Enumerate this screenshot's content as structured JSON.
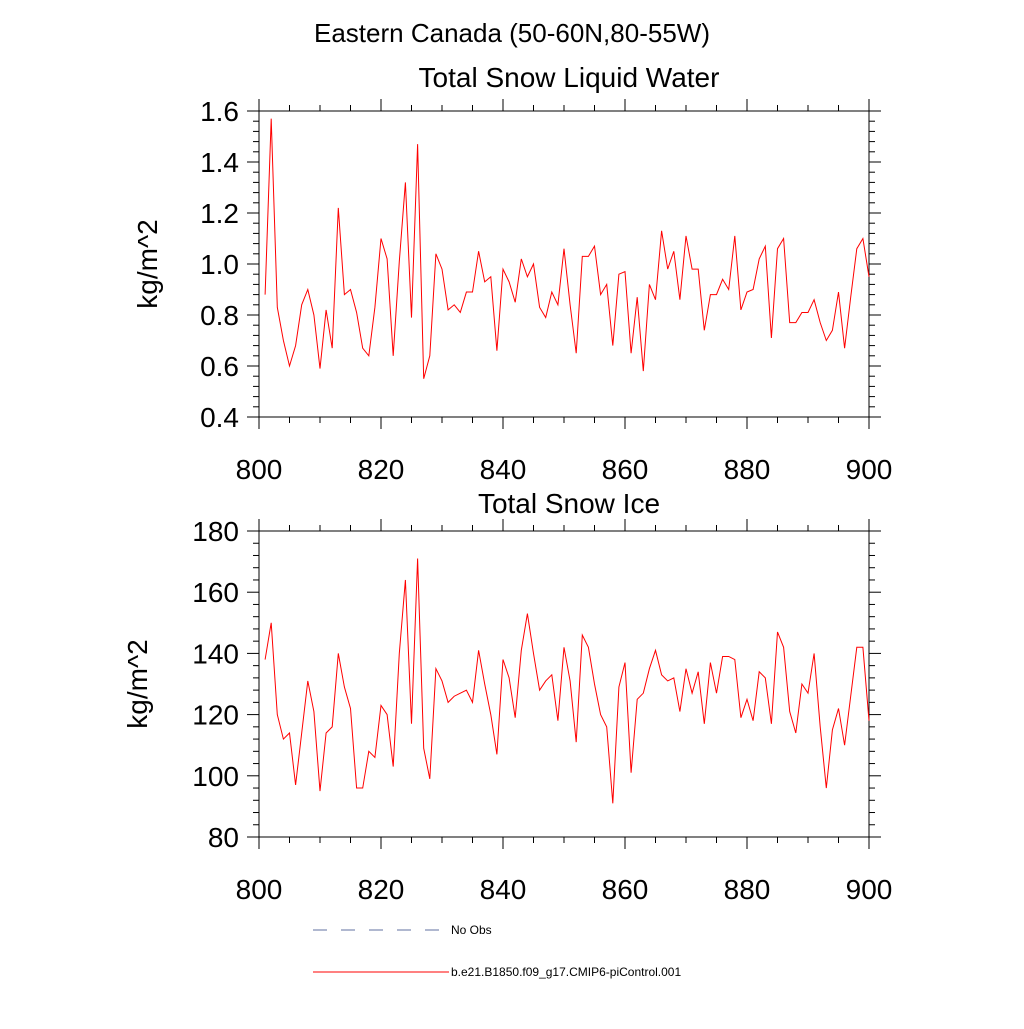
{
  "figure": {
    "title": "Eastern Canada (50-60N,80-55W)"
  },
  "chart_data": [
    {
      "type": "line",
      "title": "Total Snow Liquid Water",
      "xlabel": "",
      "ylabel": "kg/m^2",
      "xlim": [
        800,
        900
      ],
      "ylim": [
        0.4,
        1.6
      ],
      "x_ticks": [
        800,
        820,
        840,
        860,
        880,
        900
      ],
      "x_tick_labels": [
        "800",
        "820",
        "840",
        "860",
        "880",
        "900"
      ],
      "y_ticks": [
        0.4,
        0.6,
        0.8,
        1.0,
        1.2,
        1.4,
        1.6
      ],
      "y_tick_labels": [
        "0.4",
        "0.6",
        "0.8",
        "1.0",
        "1.2",
        "1.4",
        "1.6"
      ],
      "grid": false,
      "series": [
        {
          "name": "b.e21.B1850.f09_g17.CMIP6-piControl.001",
          "color": "#ff0000",
          "x_start": 801,
          "x_step": 1,
          "values": [
            0.88,
            1.57,
            0.83,
            0.7,
            0.6,
            0.68,
            0.84,
            0.9,
            0.8,
            0.59,
            0.82,
            0.67,
            1.22,
            0.88,
            0.9,
            0.81,
            0.67,
            0.64,
            0.83,
            1.1,
            1.02,
            0.64,
            1.01,
            1.32,
            0.79,
            1.47,
            0.55,
            0.64,
            1.04,
            0.98,
            0.82,
            0.84,
            0.81,
            0.89,
            0.89,
            1.05,
            0.93,
            0.95,
            0.66,
            0.98,
            0.93,
            0.85,
            1.02,
            0.95,
            1.0,
            0.83,
            0.79,
            0.89,
            0.84,
            1.06,
            0.84,
            0.65,
            1.03,
            1.03,
            1.07,
            0.88,
            0.92,
            0.68,
            0.96,
            0.97,
            0.65,
            0.87,
            0.58,
            0.92,
            0.86,
            1.13,
            0.98,
            1.05,
            0.86,
            1.11,
            0.98,
            0.98,
            0.74,
            0.88,
            0.88,
            0.94,
            0.9,
            1.11,
            0.82,
            0.89,
            0.9,
            1.02,
            1.07,
            0.71,
            1.06,
            1.1,
            0.77,
            0.77,
            0.81,
            0.81,
            0.86,
            0.77,
            0.7,
            0.74,
            0.89,
            0.67,
            0.87,
            1.06,
            1.1,
            0.95
          ]
        }
      ]
    },
    {
      "type": "line",
      "title": "Total Snow Ice",
      "xlabel": "",
      "ylabel": "kg/m^2",
      "xlim": [
        800,
        900
      ],
      "ylim": [
        80,
        180
      ],
      "x_ticks": [
        800,
        820,
        840,
        860,
        880,
        900
      ],
      "x_tick_labels": [
        "800",
        "820",
        "840",
        "860",
        "880",
        "900"
      ],
      "y_ticks": [
        80,
        100,
        120,
        140,
        160,
        180
      ],
      "y_tick_labels": [
        "80",
        "100",
        "120",
        "140",
        "160",
        "180"
      ],
      "grid": false,
      "series": [
        {
          "name": "b.e21.B1850.f09_g17.CMIP6-piControl.001",
          "color": "#ff0000",
          "x_start": 801,
          "x_step": 1,
          "values": [
            138,
            150,
            120,
            112,
            114,
            97,
            114,
            131,
            121,
            95,
            114,
            116,
            140,
            129,
            122,
            96,
            96,
            108,
            106,
            123,
            120,
            103,
            140,
            164,
            117,
            171,
            109,
            99,
            135,
            131,
            124,
            126,
            127,
            128,
            124,
            141,
            130,
            120,
            107,
            138,
            132,
            119,
            141,
            153,
            140,
            128,
            131,
            133,
            118,
            142,
            131,
            111,
            146,
            142,
            130,
            120,
            116,
            91,
            129,
            137,
            101,
            125,
            127,
            135,
            141,
            133,
            131,
            132,
            121,
            135,
            127,
            134,
            117,
            137,
            127,
            139,
            139,
            138,
            119,
            125,
            118,
            134,
            132,
            117,
            147,
            142,
            121,
            114,
            130,
            127,
            140,
            116,
            96,
            115,
            122,
            110,
            126,
            142,
            142,
            118
          ]
        }
      ]
    }
  ],
  "legend": {
    "placement": "bottom-center",
    "items": [
      {
        "label": "No Obs",
        "color": "#6070a0",
        "style": "dashed"
      },
      {
        "label": "b.e21.B1850.f09_g17.CMIP6-piControl.001",
        "color": "#ff0000",
        "style": "solid"
      }
    ]
  }
}
